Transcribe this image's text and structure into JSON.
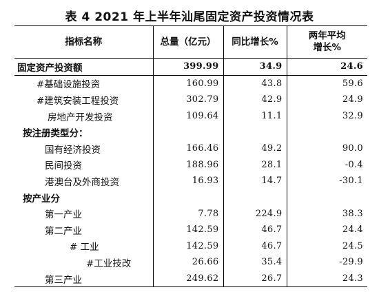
{
  "table_title": "表 4   2021 年上半年汕尾固定资产投资情况表",
  "headers": {
    "name": "指标名称",
    "total": "总量（亿元）",
    "yoy": "同比增长%",
    "two_year_line1": "两年平均",
    "two_year_line2": "增长%"
  },
  "rows": [
    {
      "name": "固定资产投资额",
      "total": "399.99",
      "yoy": "34.9",
      "two_year": "24.6"
    },
    {
      "name": "#基础设施投资",
      "total": "160.99",
      "yoy": "43.8",
      "two_year": "59.6"
    },
    {
      "name": "#建筑安装工程投资",
      "total": "302.79",
      "yoy": "42.9",
      "two_year": "24.9"
    },
    {
      "name": "房地产开发投资",
      "total": "109.64",
      "yoy": "11.1",
      "two_year": "32.9"
    },
    {
      "name": "按注册类型分：",
      "total": "",
      "yoy": "",
      "two_year": ""
    },
    {
      "name": "国有经济投资",
      "total": "166.46",
      "yoy": "49.2",
      "two_year": "90.0"
    },
    {
      "name": "民间投资",
      "total": "188.96",
      "yoy": "28.1",
      "two_year": "-0.4"
    },
    {
      "name": "港澳台及外商投资",
      "total": "16.93",
      "yoy": "14.7",
      "two_year": "-30.1"
    },
    {
      "name": "按产业分",
      "total": "",
      "yoy": "",
      "two_year": ""
    },
    {
      "name": "第一产业",
      "total": "7.78",
      "yoy": "224.9",
      "two_year": "38.3"
    },
    {
      "name": "第二产业",
      "total": "142.59",
      "yoy": "46.7",
      "two_year": "24.4"
    },
    {
      "name": "# 工业",
      "total": "142.59",
      "yoy": "46.7",
      "two_year": "24.5"
    },
    {
      "name": "#工业技改",
      "total": "26.66",
      "yoy": "35.4",
      "two_year": "-29.9"
    },
    {
      "name": "第三产业",
      "total": "249.62",
      "yoy": "26.7",
      "two_year": "24.3"
    }
  ]
}
